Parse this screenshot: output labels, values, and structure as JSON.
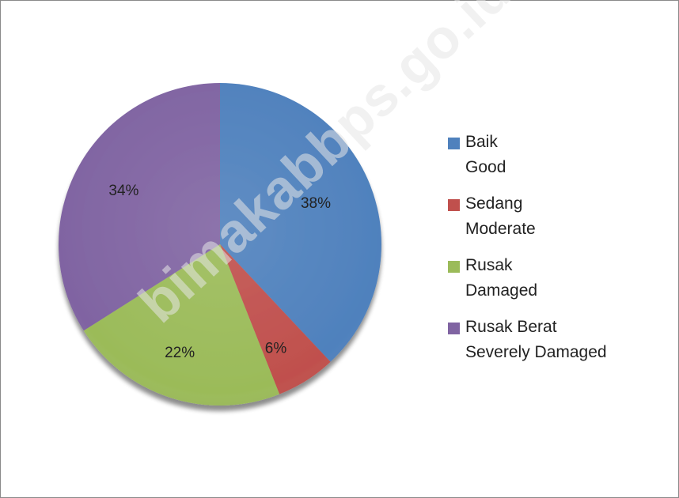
{
  "chart_data": {
    "type": "pie",
    "title": "",
    "slices": [
      {
        "label": "Baik",
        "label_en": "Good",
        "value": 38,
        "display": "38%",
        "color": "#4f81bd"
      },
      {
        "label": "Sedang",
        "label_en": "Moderate",
        "value": 6,
        "display": "6%",
        "color": "#c0504d"
      },
      {
        "label": "Rusak",
        "label_en": "Damaged",
        "value": 22,
        "display": "22%",
        "color": "#9bbb59"
      },
      {
        "label": "Rusak Berat",
        "label_en": "Severely Damaged",
        "value": 34,
        "display": "34%",
        "color": "#8064a2"
      }
    ],
    "legend_position": "right",
    "start_angle": "12 o'clock",
    "direction": "clockwise"
  },
  "watermark": "bimakabbps.go.id"
}
